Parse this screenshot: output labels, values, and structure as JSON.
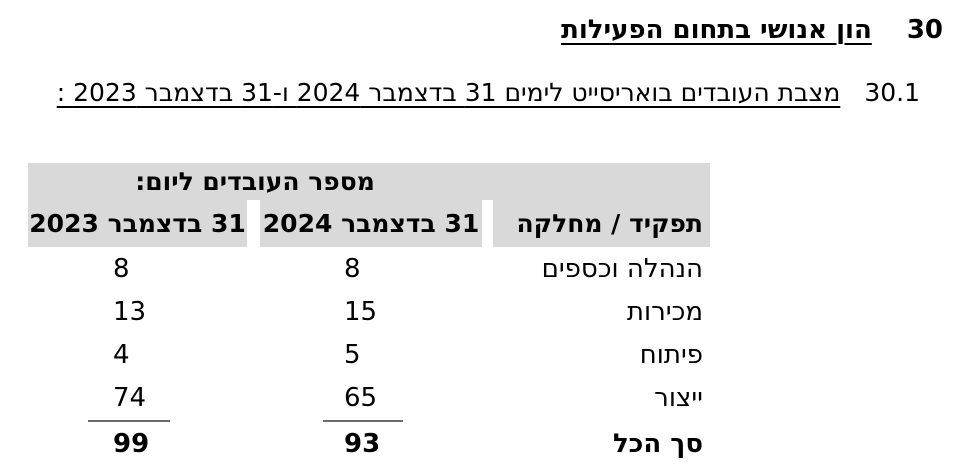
{
  "page": {
    "section_number": "30",
    "title": "הון אנושי בתחום הפעילות",
    "subsection_number": "30.1",
    "subtitle": "מצבת העובדים בואריסייט לימים 31 בדצמבר 2024 ו-31 בדצמבר 2023 :"
  },
  "table": {
    "group_header": "מספר העובדים ליום:",
    "columns": {
      "role": "תפקיד / מחלקה",
      "dec2024": "31 בדצמבר 2024",
      "dec2023": "31 בדצמבר 2023"
    },
    "rows": [
      {
        "role": "הנהלה וכספים",
        "dec2024": "8",
        "dec2023": "8"
      },
      {
        "role": "מכירות",
        "dec2024": "15",
        "dec2023": "13"
      },
      {
        "role": "פיתוח",
        "dec2024": "5",
        "dec2023": "4"
      },
      {
        "role": "ייצור",
        "dec2024": "65",
        "dec2023": "74"
      }
    ],
    "total": {
      "role": "סך הכל",
      "dec2024": "93",
      "dec2023": "99"
    }
  },
  "colors": {
    "header_bg": "#d9d9d9",
    "text": "#000000",
    "total_rule": "#6b6b6b"
  }
}
